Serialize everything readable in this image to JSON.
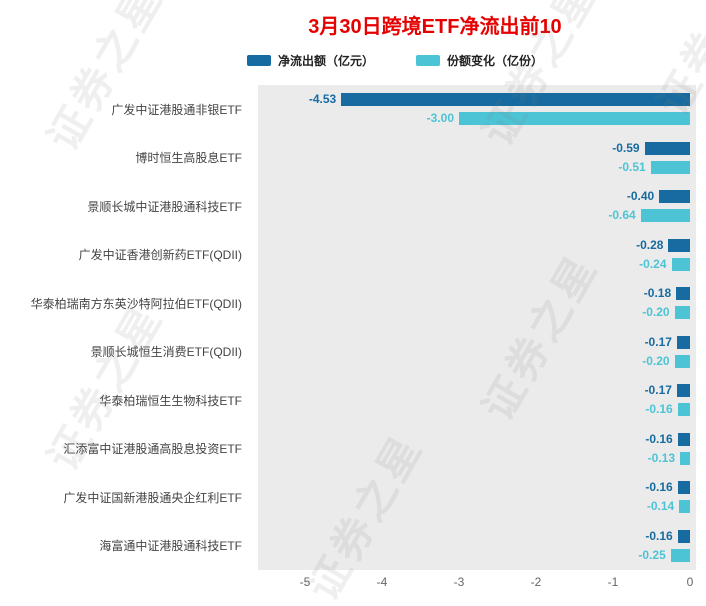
{
  "title": {
    "text": "3月30日跨境ETF净流出前10",
    "color": "#e60000"
  },
  "watermark": "证券之星",
  "chart_data": {
    "type": "bar",
    "orientation": "horizontal",
    "title": "3月30日跨境ETF净流出前10",
    "plot_bg": "#ebebeb",
    "categories": [
      "广发中证港股通非银ETF",
      "博时恒生高股息ETF",
      "景顺长城中证港股通科技ETF",
      "广发中证香港创新药ETF(QDII)",
      "华泰柏瑞南方东英沙特阿拉伯ETF(QDII)",
      "景顺长城恒生消费ETF(QDII)",
      "华泰柏瑞恒生生物科技ETF",
      "汇添富中证港股通高股息投资ETF",
      "广发中证国新港股通央企红利ETF",
      "海富通中证港股通科技ETF"
    ],
    "series": [
      {
        "name": "净流出额（亿元）",
        "color": "#176BA0",
        "values": [
          -4.53,
          -0.59,
          -0.4,
          -0.28,
          -0.18,
          -0.17,
          -0.17,
          -0.16,
          -0.16,
          -0.16
        ]
      },
      {
        "name": "份额变化（亿份）",
        "color": "#4DC4D6",
        "values": [
          -3.0,
          -0.51,
          -0.64,
          -0.24,
          -0.2,
          -0.2,
          -0.16,
          -0.13,
          -0.14,
          -0.25
        ]
      }
    ],
    "x_ticks": [
      -5,
      -4,
      -3,
      -2,
      -1,
      0
    ],
    "xlim": [
      -5.6,
      0.1
    ],
    "value_label_decimals": 2,
    "legend_position": "top",
    "grid": false
  }
}
